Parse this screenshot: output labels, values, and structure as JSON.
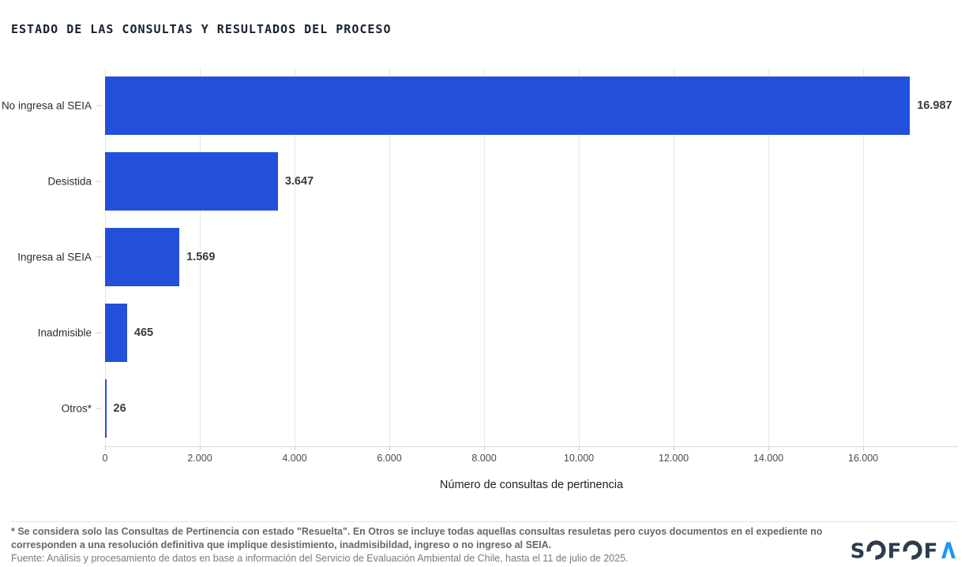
{
  "title": "ESTADO DE LAS CONSULTAS Y RESULTADOS DEL PROCESO",
  "chart_data": {
    "type": "bar",
    "orientation": "horizontal",
    "categories": [
      "No ingresa al SEIA",
      "Desistida",
      "Ingresa al SEIA",
      "Inadmisible",
      "Otros*"
    ],
    "values": [
      16987,
      3647,
      1569,
      465,
      26
    ],
    "value_labels": [
      "16.987",
      "3.647",
      "1.569",
      "465",
      "26"
    ],
    "xlabel": "Número de consultas de pertinencia",
    "xlim": [
      0,
      18000
    ],
    "x_ticks": [
      0,
      2000,
      4000,
      6000,
      8000,
      10000,
      12000,
      14000,
      16000
    ],
    "x_tick_labels": [
      "0",
      "2.000",
      "4.000",
      "6.000",
      "8.000",
      "10.000",
      "12.000",
      "14.000",
      "16.000"
    ],
    "bar_color": "#2350da",
    "grid": true,
    "legend": "none"
  },
  "footer": {
    "note_line1": "* Se considera solo las Consultas de Pertinencia con estado \"Resuelta\". En Otros se incluye todas aquellas consultas resuletas pero cuyos documentos en el expediente no",
    "note_line2": "corresponden a una resolución definitiva que implique desistimiento, inadmisibildad, ingreso o no ingreso al SEIA.",
    "source": "Fuente: Análisis y procesamiento de datos en base a información del Servicio de Evaluación Ambiental de Chile, hasta el 11 de julio de 2025."
  },
  "logo": {
    "name": "SOFOFA",
    "char_s": "S",
    "char_f1": "F",
    "char_f2": "F",
    "dark_color": "#2c3c4e",
    "blue_color": "#2196f3"
  }
}
